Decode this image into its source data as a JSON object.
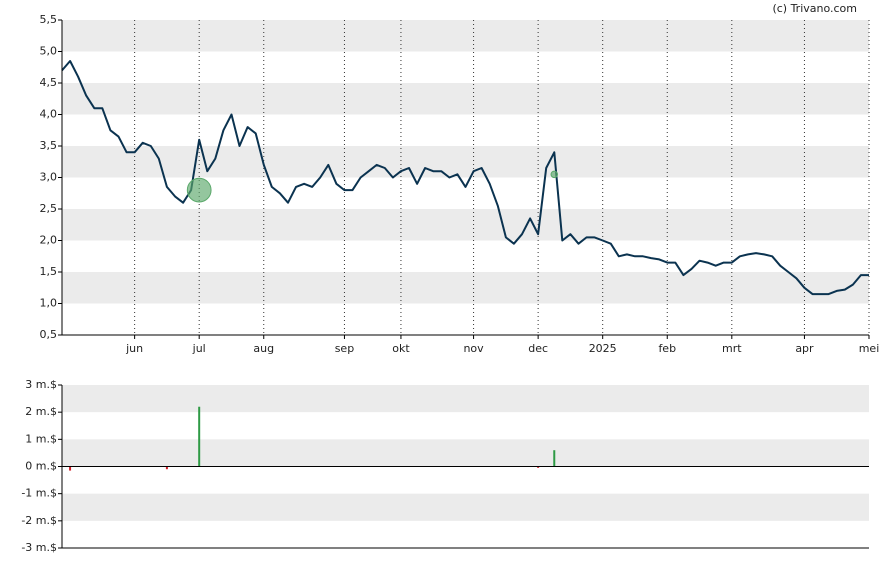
{
  "credit": "(c) Trivano.com",
  "chart_data": [
    {
      "type": "line",
      "categories": [
        null,
        null,
        null,
        null,
        null,
        null,
        null,
        null,
        null,
        "jun",
        null,
        null,
        null,
        null,
        null,
        null,
        null,
        "jul",
        null,
        null,
        null,
        null,
        null,
        null,
        null,
        "aug",
        null,
        null,
        null,
        null,
        null,
        null,
        null,
        null,
        null,
        "sep",
        null,
        null,
        null,
        null,
        null,
        null,
        "okt",
        null,
        null,
        null,
        null,
        null,
        null,
        null,
        null,
        "nov",
        null,
        null,
        null,
        null,
        null,
        null,
        null,
        "dec",
        null,
        null,
        null,
        null,
        null,
        null,
        null,
        "2025",
        null,
        null,
        null,
        null,
        null,
        null,
        null,
        "feb",
        null,
        null,
        null,
        null,
        null,
        null,
        null,
        "mrt",
        null,
        null,
        null,
        null,
        null,
        null,
        null,
        null,
        "apr",
        null,
        null,
        null,
        null,
        null,
        null,
        null,
        "mei"
      ],
      "series": [
        {
          "color": "#0b3350",
          "values": [
            4.7,
            4.85,
            4.6,
            4.3,
            4.1,
            4.1,
            3.75,
            3.65,
            3.4,
            3.4,
            3.55,
            3.5,
            3.3,
            2.85,
            2.7,
            2.6,
            2.8,
            3.6,
            3.1,
            3.3,
            3.75,
            4.0,
            3.5,
            3.8,
            3.7,
            3.2,
            2.85,
            2.75,
            2.6,
            2.85,
            2.9,
            2.85,
            3.0,
            3.2,
            2.9,
            2.8,
            2.8,
            3.0,
            3.1,
            3.2,
            3.15,
            3.0,
            3.1,
            3.15,
            2.9,
            3.15,
            3.1,
            3.1,
            3.0,
            3.05,
            2.85,
            3.1,
            3.15,
            2.9,
            2.55,
            2.05,
            1.95,
            2.1,
            2.35,
            2.1,
            3.15,
            3.4,
            2.0,
            2.1,
            1.95,
            2.05,
            2.05,
            2.0,
            1.95,
            1.75,
            1.78,
            1.75,
            1.75,
            1.72,
            1.7,
            1.65,
            1.65,
            1.45,
            1.55,
            1.68,
            1.65,
            1.6,
            1.65,
            1.65,
            1.75,
            1.78,
            1.8,
            1.78,
            1.75,
            1.6,
            1.5,
            1.4,
            1.25,
            1.15,
            1.15,
            1.15,
            1.2,
            1.22,
            1.3,
            1.45,
            1.45
          ]
        }
      ],
      "markers": {
        "color": "#5aa86a",
        "values": [
          null,
          null,
          null,
          null,
          null,
          null,
          null,
          null,
          null,
          null,
          null,
          null,
          null,
          null,
          null,
          null,
          null,
          2.8,
          null,
          null,
          null,
          null,
          null,
          null,
          null,
          null,
          null,
          null,
          null,
          null,
          null,
          null,
          null,
          null,
          null,
          null,
          null,
          null,
          null,
          null,
          null,
          null,
          null,
          null,
          null,
          null,
          null,
          null,
          null,
          null,
          null,
          null,
          null,
          null,
          null,
          null,
          null,
          null,
          null,
          null,
          null,
          3.05,
          null,
          null,
          null,
          null,
          null,
          null,
          null,
          null,
          null,
          null,
          null,
          null,
          null,
          null,
          null,
          null,
          null,
          null,
          null,
          null,
          null,
          null,
          null,
          null,
          null,
          null,
          null,
          null,
          null,
          null,
          null,
          null,
          null,
          null,
          null,
          null,
          null,
          null,
          null
        ]
      },
      "ylim": [
        0.5,
        5.5
      ],
      "yticks": [
        {
          "value": 0.5,
          "label": "0,5"
        },
        {
          "value": 1.0,
          "label": "1,0"
        },
        {
          "value": 1.5,
          "label": "1,5"
        },
        {
          "value": 2.0,
          "label": "2,0"
        },
        {
          "value": 2.5,
          "label": "2,5"
        },
        {
          "value": 3.0,
          "label": "3,0"
        },
        {
          "value": 3.5,
          "label": "3,5"
        },
        {
          "value": 4.0,
          "label": "4,0"
        },
        {
          "value": 4.5,
          "label": "4,5"
        },
        {
          "value": 5.0,
          "label": "5,0"
        },
        {
          "value": 5.5,
          "label": "5,5"
        }
      ],
      "grid": true
    },
    {
      "type": "bar",
      "series": [
        {
          "color": "#2e9a45",
          "values": [
            null,
            null,
            null,
            null,
            null,
            null,
            null,
            null,
            null,
            null,
            null,
            null,
            null,
            null,
            null,
            null,
            null,
            2.2,
            null,
            null,
            null,
            null,
            null,
            null,
            null,
            null,
            null,
            null,
            null,
            null,
            null,
            null,
            null,
            null,
            null,
            null,
            null,
            null,
            null,
            null,
            null,
            null,
            null,
            null,
            null,
            null,
            null,
            null,
            null,
            null,
            null,
            null,
            null,
            null,
            null,
            null,
            null,
            null,
            null,
            null,
            null,
            0.6,
            null,
            null,
            null,
            null,
            null,
            null,
            null,
            null,
            null,
            null,
            null,
            null,
            null,
            null,
            null,
            null,
            null,
            null,
            null,
            null,
            null,
            null,
            null,
            null,
            null,
            null,
            null,
            null,
            null,
            null,
            null,
            null,
            null,
            null,
            null,
            null,
            null,
            null,
            null
          ]
        },
        {
          "color": "#d0202a",
          "values": [
            null,
            -0.15,
            null,
            null,
            null,
            null,
            null,
            null,
            null,
            null,
            null,
            null,
            null,
            -0.1,
            null,
            null,
            null,
            null,
            null,
            null,
            null,
            null,
            null,
            null,
            null,
            null,
            null,
            null,
            null,
            null,
            null,
            null,
            null,
            null,
            null,
            null,
            null,
            null,
            null,
            null,
            null,
            null,
            null,
            null,
            null,
            null,
            null,
            null,
            null,
            null,
            null,
            null,
            null,
            null,
            null,
            null,
            null,
            null,
            null,
            -0.05,
            null,
            null,
            null,
            null,
            null,
            null,
            null,
            null,
            null,
            null,
            null,
            null,
            null,
            null,
            null,
            null,
            null,
            null,
            null,
            null,
            null,
            null,
            null,
            null,
            null,
            null,
            null,
            null,
            null,
            null,
            null,
            null,
            null,
            null,
            null,
            null,
            null,
            null,
            null,
            null,
            null
          ]
        }
      ],
      "ylim": [
        -3,
        3
      ],
      "yticks": [
        {
          "value": -3,
          "label": "-3 m.$"
        },
        {
          "value": -2,
          "label": "-2 m.$"
        },
        {
          "value": -1,
          "label": "-1 m.$"
        },
        {
          "value": 0,
          "label": "0 m.$"
        },
        {
          "value": 1,
          "label": "1 m.$"
        },
        {
          "value": 2,
          "label": "2 m.$"
        },
        {
          "value": 3,
          "label": "3 m.$"
        }
      ],
      "grid": true
    }
  ]
}
